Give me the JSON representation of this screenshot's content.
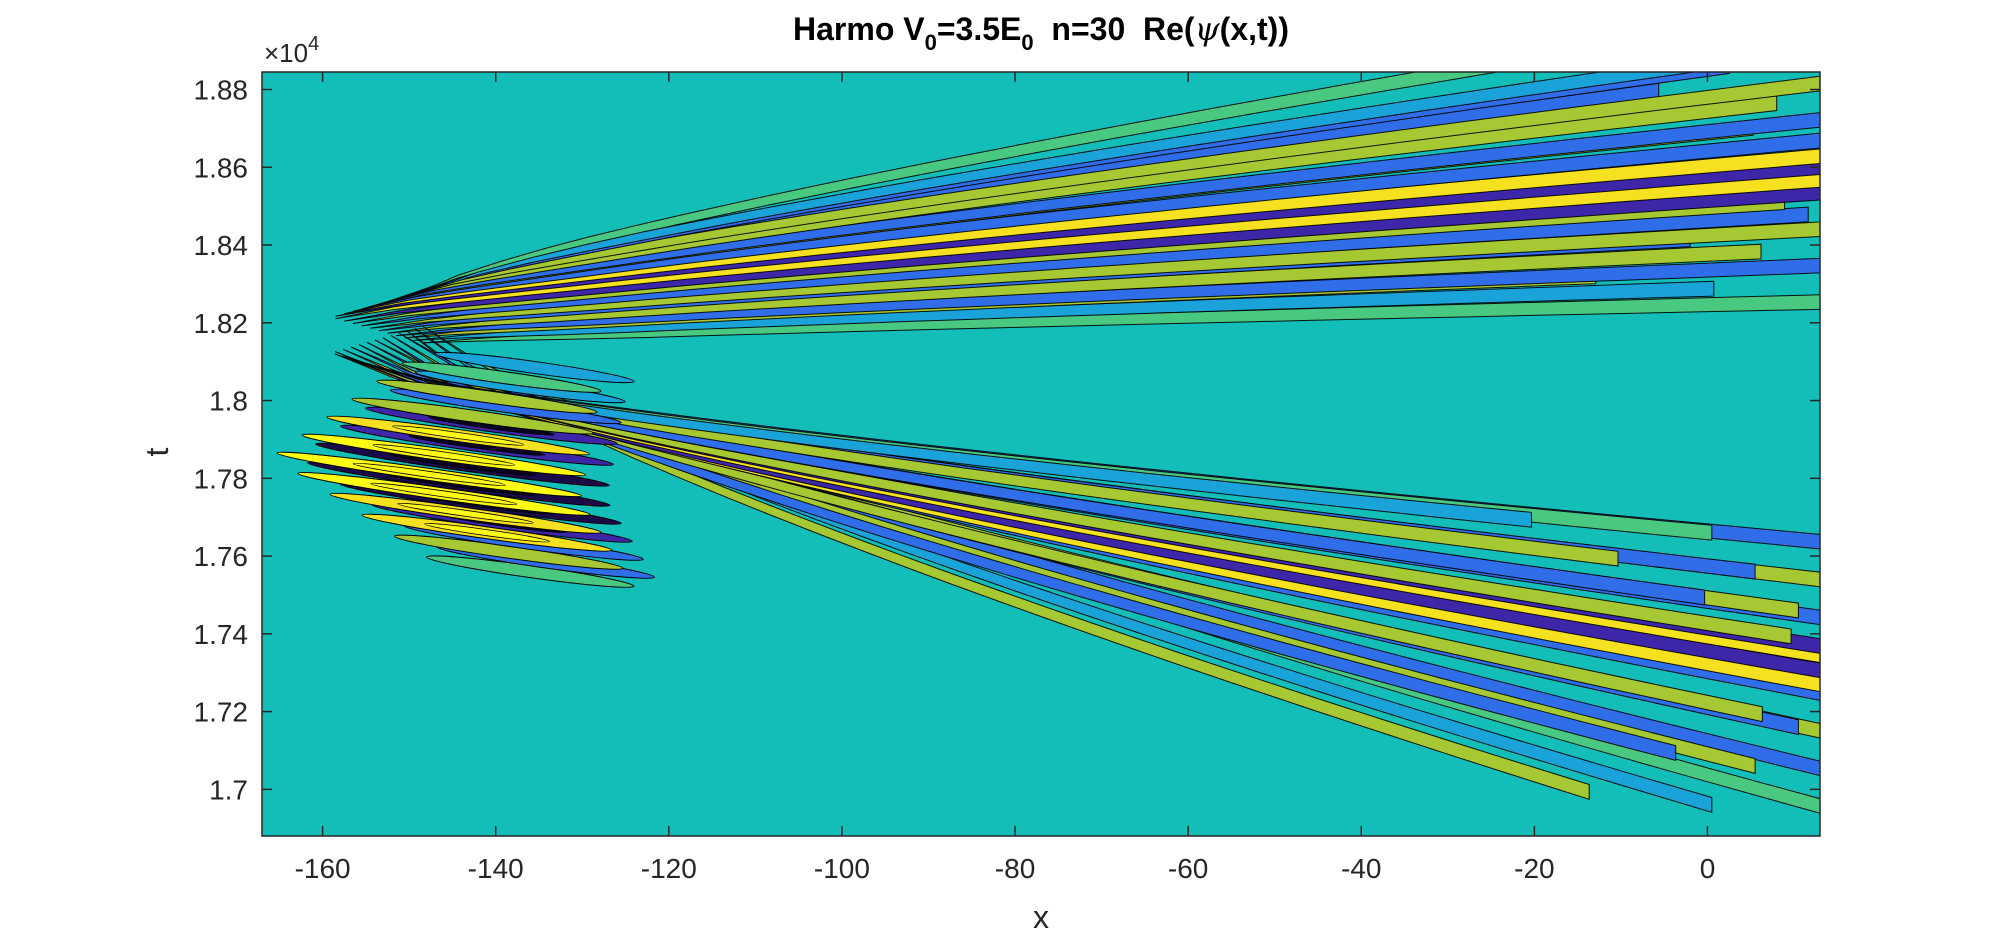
{
  "chart_data": {
    "type": "heatmap",
    "subtype": "filled-contour",
    "title": {
      "prefix": "Harmo V",
      "sub1": "0",
      "mid": "=3.5E",
      "sub2": "0",
      "suffix": "  n=30  Re(",
      "psi": "ψ",
      "tail": "(x,t))"
    },
    "xlabel": "x",
    "ylabel": "t",
    "xlim": [
      -167,
      13
    ],
    "ylim": [
      16880,
      18845
    ],
    "x_ticks": [
      -160,
      -140,
      -120,
      -100,
      -80,
      -60,
      -40,
      -20,
      0
    ],
    "x_tick_labels": [
      "-160",
      "-140",
      "-120",
      "-100",
      "-80",
      "-60",
      "-40",
      "-20",
      "0"
    ],
    "y_ticks": [
      17000,
      17200,
      17400,
      17600,
      17800,
      18000,
      18200,
      18400,
      18600,
      18800
    ],
    "y_tick_labels": [
      "1.7",
      "1.72",
      "1.74",
      "1.76",
      "1.78",
      "1.8",
      "1.82",
      "1.84",
      "1.86",
      "1.88"
    ],
    "y_exponent": {
      "base": "×10",
      "power": "4"
    },
    "colormap": [
      "#3e26a8",
      "#2f6ee8",
      "#1aa3d9",
      "#13bdb8",
      "#48c881",
      "#a6c832",
      "#f5e11f",
      "#fdfb14"
    ],
    "background_level": "#13bdb8",
    "contour_line_color": "#000000",
    "wave_packet": {
      "x_vertex": -163,
      "t_vertex": 18170,
      "upper_branch_t_end": 18790,
      "lower_branch_t_end": 16960,
      "x_end": 13
    }
  }
}
